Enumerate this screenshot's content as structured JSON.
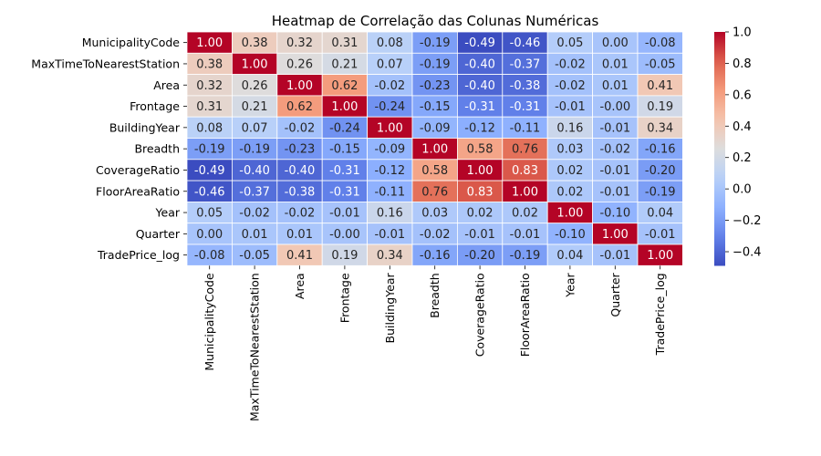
{
  "chart_data": {
    "type": "heatmap",
    "title": "Heatmap de Correlação das Colunas Numéricas",
    "labels": [
      "MunicipalityCode",
      "MaxTimeToNearestStation",
      "Area",
      "Frontage",
      "BuildingYear",
      "Breadth",
      "CoverageRatio",
      "FloorAreaRatio",
      "Year",
      "Quarter",
      "TradePrice_log"
    ],
    "matrix": [
      [
        "1.00",
        "0.38",
        "0.32",
        "0.31",
        "0.08",
        "-0.19",
        "-0.49",
        "-0.46",
        "0.05",
        "0.00",
        "-0.08"
      ],
      [
        "0.38",
        "1.00",
        "0.26",
        "0.21",
        "0.07",
        "-0.19",
        "-0.40",
        "-0.37",
        "-0.02",
        "0.01",
        "-0.05"
      ],
      [
        "0.32",
        "0.26",
        "1.00",
        "0.62",
        "-0.02",
        "-0.23",
        "-0.40",
        "-0.38",
        "-0.02",
        "0.01",
        "0.41"
      ],
      [
        "0.31",
        "0.21",
        "0.62",
        "1.00",
        "-0.24",
        "-0.15",
        "-0.31",
        "-0.31",
        "-0.01",
        "-0.00",
        "0.19"
      ],
      [
        "0.08",
        "0.07",
        "-0.02",
        "-0.24",
        "1.00",
        "-0.09",
        "-0.12",
        "-0.11",
        "0.16",
        "-0.01",
        "0.34"
      ],
      [
        "-0.19",
        "-0.19",
        "-0.23",
        "-0.15",
        "-0.09",
        "1.00",
        "0.58",
        "0.76",
        "0.03",
        "-0.02",
        "-0.16"
      ],
      [
        "-0.49",
        "-0.40",
        "-0.40",
        "-0.31",
        "-0.12",
        "0.58",
        "1.00",
        "0.83",
        "0.02",
        "-0.01",
        "-0.20"
      ],
      [
        "-0.46",
        "-0.37",
        "-0.38",
        "-0.31",
        "-0.11",
        "0.76",
        "0.83",
        "1.00",
        "0.02",
        "-0.01",
        "-0.19"
      ],
      [
        "0.05",
        "-0.02",
        "-0.02",
        "-0.01",
        "0.16",
        "0.03",
        "0.02",
        "0.02",
        "1.00",
        "-0.10",
        "0.04"
      ],
      [
        "0.00",
        "0.01",
        "0.01",
        "-0.00",
        "-0.01",
        "-0.02",
        "-0.01",
        "-0.01",
        "-0.10",
        "1.00",
        "-0.01"
      ],
      [
        "-0.08",
        "-0.05",
        "0.41",
        "0.19",
        "0.34",
        "-0.16",
        "-0.20",
        "-0.19",
        "0.04",
        "-0.01",
        "1.00"
      ]
    ],
    "colormap": "coolwarm",
    "vmin": -0.49,
    "vmax": 1.0,
    "colorbar_ticks": [
      "1.0",
      "0.8",
      "0.6",
      "0.4",
      "0.2",
      "0.0",
      "−0.2",
      "−0.4"
    ],
    "grid": true,
    "legend": "colorbar-right"
  }
}
